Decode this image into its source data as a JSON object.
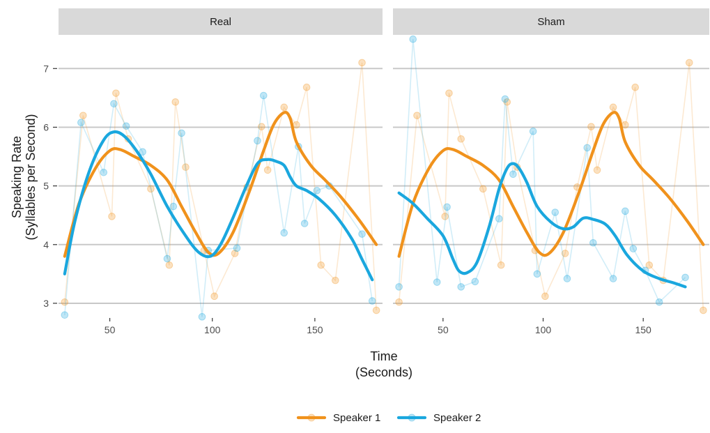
{
  "chart_data": {
    "type": "line",
    "facets": [
      "Real",
      "Sham"
    ],
    "xlabel_line1": "Time",
    "xlabel_line2": "(Seconds)",
    "ylabel_line1": "Speaking Rate",
    "ylabel_line2": "(Syllables per Second)",
    "xlim": [
      25,
      183
    ],
    "ylim": [
      2.75,
      7.55
    ],
    "x_ticks": [
      50,
      100,
      150
    ],
    "y_ticks": [
      3,
      4,
      5,
      6,
      7
    ],
    "grid": "horizontal major lines only",
    "legend_position": "bottom",
    "series": [
      {
        "name": "Speaker 1",
        "color": "#f0921c",
        "raw": {
          "Real": {
            "x": [
              28,
              37,
              51,
              53,
              59,
              70,
              79,
              82,
              87,
              96,
              101,
              111,
              117,
              124,
              127,
              135,
              141,
              146,
              153,
              160,
              173,
              180
            ],
            "y": [
              3.02,
              6.2,
              4.48,
              6.58,
              5.8,
              4.95,
              3.65,
              6.43,
              5.32,
              3.9,
              3.12,
              3.85,
              4.98,
              6.01,
              5.27,
              6.34,
              6.04,
              6.68,
              3.65,
              3.39,
              7.1,
              2.88
            ]
          },
          "Sham": {
            "x": [
              28,
              37,
              51,
              53,
              59,
              70,
              79,
              82,
              87,
              96,
              101,
              111,
              117,
              124,
              127,
              135,
              141,
              146,
              153,
              160,
              173,
              180
            ],
            "y": [
              3.02,
              6.2,
              4.48,
              6.58,
              5.8,
              4.95,
              3.65,
              6.43,
              5.32,
              3.9,
              3.12,
              3.85,
              4.98,
              6.01,
              5.27,
              6.34,
              6.04,
              6.68,
              3.65,
              3.39,
              7.1,
              2.88
            ]
          }
        },
        "smooth": {
          "Real": {
            "x": [
              28,
              35,
              43,
              50,
              55,
              62,
              70,
              78,
              85,
              92,
              98,
              103,
              110,
              118,
              125,
              130,
              135,
              138,
              141,
              148,
              155,
              163,
              172,
              180
            ],
            "y": [
              3.8,
              4.7,
              5.3,
              5.6,
              5.62,
              5.5,
              5.35,
              5.1,
              4.65,
              4.2,
              3.87,
              3.85,
              4.2,
              4.9,
              5.6,
              6.05,
              6.25,
              6.15,
              5.75,
              5.35,
              5.1,
              4.8,
              4.4,
              4.0
            ]
          },
          "Sham": {
            "x": [
              28,
              35,
              43,
              50,
              55,
              62,
              70,
              78,
              85,
              92,
              98,
              103,
              110,
              118,
              125,
              130,
              135,
              138,
              141,
              148,
              155,
              163,
              172,
              180
            ],
            "y": [
              3.8,
              4.7,
              5.3,
              5.6,
              5.62,
              5.5,
              5.35,
              5.1,
              4.65,
              4.2,
              3.87,
              3.85,
              4.2,
              4.9,
              5.6,
              6.05,
              6.25,
              6.15,
              5.75,
              5.35,
              5.1,
              4.8,
              4.4,
              4.0
            ]
          }
        }
      },
      {
        "name": "Speaker 2",
        "color": "#1aa7de",
        "raw": {
          "Real": {
            "x": [
              28,
              36,
              47,
              52,
              58,
              66,
              78,
              81,
              85,
              95,
              98,
              112,
              122,
              125,
              135,
              142,
              145,
              151,
              157,
              173,
              178
            ],
            "y": [
              2.8,
              6.08,
              5.23,
              6.4,
              6.02,
              5.58,
              3.76,
              4.65,
              5.9,
              2.77,
              3.9,
              3.94,
              5.77,
              6.54,
              4.2,
              5.67,
              4.36,
              4.92,
              5.0,
              4.18,
              3.04
            ]
          },
          "Sham": {
            "x": [
              28,
              35,
              47,
              52,
              59,
              66,
              78,
              81,
              85,
              95,
              97,
              106,
              112,
              122,
              125,
              135,
              141,
              145,
              151,
              158,
              171
            ],
            "y": [
              3.28,
              7.5,
              3.36,
              4.64,
              3.28,
              3.37,
              4.44,
              6.48,
              5.2,
              5.93,
              3.5,
              4.55,
              3.42,
              5.65,
              4.03,
              3.42,
              4.57,
              3.93,
              3.56,
              3.02,
              3.44
            ]
          }
        },
        "smooth": {
          "Real": {
            "x": [
              28,
              33,
              40,
              47,
              52,
              57,
              63,
              70,
              78,
              86,
              93,
              99,
              104,
              110,
              116,
              122,
              127,
              131,
              135,
              138,
              141,
              146,
              152,
              160,
              168,
              173,
              178
            ],
            "y": [
              3.5,
              4.4,
              5.25,
              5.78,
              5.92,
              5.85,
              5.6,
              5.2,
              4.65,
              4.2,
              3.88,
              3.8,
              4.0,
              4.45,
              4.95,
              5.38,
              5.45,
              5.42,
              5.35,
              5.15,
              5.0,
              4.92,
              4.78,
              4.5,
              4.1,
              3.75,
              3.4
            ]
          },
          "Sham": {
            "x": [
              28,
              35,
              42,
              50,
              55,
              58,
              62,
              67,
              73,
              78,
              82,
              85,
              88,
              92,
              97,
              104,
              110,
              115,
              120,
              125,
              131,
              136,
              142,
              150,
              158,
              165,
              171
            ],
            "y": [
              4.88,
              4.7,
              4.45,
              4.15,
              3.75,
              3.55,
              3.52,
              3.7,
              4.3,
              4.95,
              5.3,
              5.38,
              5.3,
              5.05,
              4.65,
              4.38,
              4.27,
              4.3,
              4.45,
              4.43,
              4.35,
              4.15,
              3.82,
              3.55,
              3.42,
              3.35,
              3.28
            ]
          }
        }
      }
    ]
  }
}
